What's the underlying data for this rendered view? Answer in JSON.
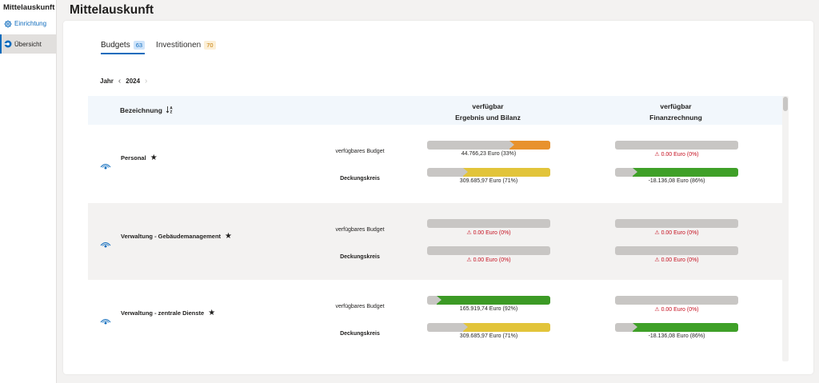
{
  "app": {
    "title": "Mittelauskunft"
  },
  "sidebar": {
    "items": [
      {
        "label": "Einrichtung",
        "icon": "gear-icon"
      },
      {
        "label": "Übersicht",
        "icon": "overview-icon"
      }
    ]
  },
  "page": {
    "title": "Mittelauskunft"
  },
  "tabs": [
    {
      "label": "Budgets",
      "count": "63",
      "active": true
    },
    {
      "label": "Investitionen",
      "count": "70",
      "active": false
    }
  ],
  "year": {
    "label": "Jahr",
    "value": "2024"
  },
  "table": {
    "header": {
      "name": "Bezeichnung",
      "sort_glyph": "↓A͢Z",
      "col1_line1": "verfügbar",
      "col1_line2": "Ergebnis und Bilanz",
      "col2_line1": "verfügbar",
      "col2_line2": "Finanzrechnung"
    },
    "sublabels": {
      "budget": "verfügbares Budget",
      "deckung": "Deckungskreis"
    },
    "rows": [
      {
        "name": "Personal",
        "eb_budget": {
          "text": "44.766,23 Euro (33%)",
          "percent": 33,
          "color": "#e8922d",
          "warn": false
        },
        "eb_deckung": {
          "text": "309.685,97 Euro (71%)",
          "percent": 71,
          "color": "#e2c43a",
          "warn": false
        },
        "fr_budget": {
          "text": "0.00 Euro (0%)",
          "percent": 0,
          "color": "#c8c6c4",
          "warn": true
        },
        "fr_deckung": {
          "text": "-18.136,08 Euro (86%)",
          "percent": 86,
          "color": "#3fa028",
          "warn": false
        }
      },
      {
        "name": "Verwaltung - Gebäudemanagement",
        "eb_budget": {
          "text": "0.00 Euro (0%)",
          "percent": 0,
          "color": "#c8c6c4",
          "warn": true
        },
        "eb_deckung": {
          "text": "0.00 Euro (0%)",
          "percent": 0,
          "color": "#c8c6c4",
          "warn": true
        },
        "fr_budget": {
          "text": "0.00 Euro (0%)",
          "percent": 0,
          "color": "#c8c6c4",
          "warn": true
        },
        "fr_deckung": {
          "text": "0.00 Euro (0%)",
          "percent": 0,
          "color": "#c8c6c4",
          "warn": true
        }
      },
      {
        "name": "Verwaltung - zentrale Dienste",
        "eb_budget": {
          "text": "165.919,74 Euro (92%)",
          "percent": 92,
          "color": "#3c9a25",
          "warn": false
        },
        "eb_deckung": {
          "text": "309.685,97 Euro (71%)",
          "percent": 71,
          "color": "#e2c43a",
          "warn": false
        },
        "fr_budget": {
          "text": "0.00 Euro (0%)",
          "percent": 0,
          "color": "#c8c6c4",
          "warn": true
        },
        "fr_deckung": {
          "text": "-18.136,08 Euro (86%)",
          "percent": 86,
          "color": "#3fa028",
          "warn": false
        }
      }
    ]
  }
}
